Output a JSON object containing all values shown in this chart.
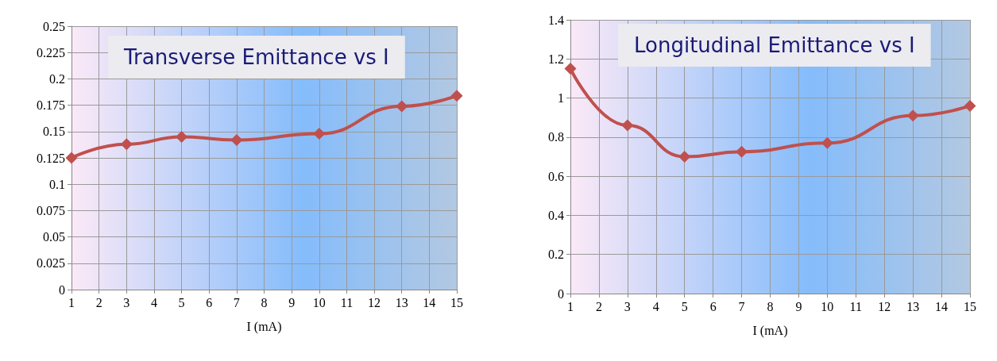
{
  "chart_data": [
    {
      "type": "line",
      "title": "Transverse Emittance vs I",
      "xlabel": "I (mA)",
      "x": [
        1,
        3,
        5,
        7,
        10,
        13,
        15
      ],
      "series": [
        {
          "color": "#c0504d",
          "values": [
            0.125,
            0.138,
            0.145,
            0.142,
            0.148,
            0.174,
            0.184
          ]
        }
      ],
      "xlim": [
        1,
        15
      ],
      "xticks": [
        1,
        2,
        3,
        4,
        5,
        6,
        7,
        8,
        9,
        10,
        11,
        12,
        13,
        14,
        15
      ],
      "ylim": [
        0,
        0.25
      ],
      "yticks": [
        0,
        0.025,
        0.05,
        0.075,
        0.1,
        0.125,
        0.15,
        0.175,
        0.2,
        0.225,
        0.25
      ],
      "grid": true,
      "marker": "diamond",
      "line_style": "solid"
    },
    {
      "type": "line",
      "title": "Longitudinal Emittance vs I",
      "xlabel": "I (mA)",
      "x": [
        1,
        3,
        5,
        7,
        10,
        13,
        15
      ],
      "series": [
        {
          "color": "#c0504d",
          "values": [
            1.15,
            0.86,
            0.7,
            0.725,
            0.77,
            0.91,
            0.96
          ]
        }
      ],
      "xlim": [
        1,
        15
      ],
      "xticks": [
        1,
        2,
        3,
        4,
        5,
        6,
        7,
        8,
        9,
        10,
        11,
        12,
        13,
        14,
        15
      ],
      "ylim": [
        0,
        1.4
      ],
      "yticks": [
        0,
        0.2,
        0.4,
        0.6,
        0.8,
        1,
        1.2,
        1.4
      ],
      "grid": true,
      "marker": "diamond",
      "line_style": "solid"
    }
  ]
}
